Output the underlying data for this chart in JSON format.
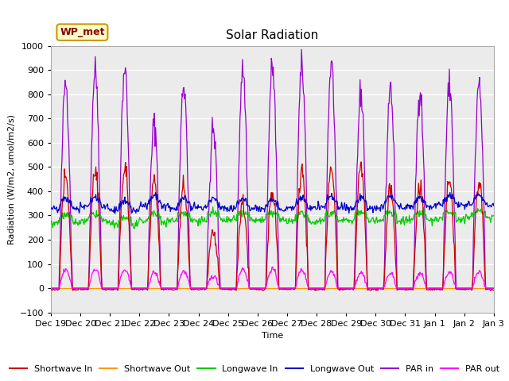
{
  "title": "Solar Radiation",
  "ylabel": "Radiation (W/m2, umol/m2/s)",
  "xlabel": "Time",
  "ylim": [
    -100,
    1000
  ],
  "annotation": "WP_met",
  "x_tick_labels": [
    "Dec 19",
    "Dec 20",
    "Dec 21",
    "Dec 22",
    "Dec 23",
    "Dec 24",
    "Dec 25",
    "Dec 26",
    "Dec 27",
    "Dec 28",
    "Dec 29",
    "Dec 30",
    "Dec 31",
    "Jan 1",
    "Jan 2",
    "Jan 3"
  ],
  "yticks": [
    -100,
    0,
    100,
    200,
    300,
    400,
    500,
    600,
    700,
    800,
    900,
    1000
  ],
  "bg_color": "#e8e8e8",
  "plot_bg_color": "#ebebeb",
  "grid_color": "#ffffff",
  "title_fontsize": 11,
  "axis_fontsize": 8,
  "legend_items": [
    {
      "label": "Shortwave In",
      "color": "#cc0000"
    },
    {
      "label": "Shortwave Out",
      "color": "#ff9900"
    },
    {
      "label": "Longwave In",
      "color": "#00cc00"
    },
    {
      "label": "Longwave Out",
      "color": "#0000cc"
    },
    {
      "label": "PAR in",
      "color": "#9900cc"
    },
    {
      "label": "PAR out",
      "color": "#ff00ff"
    }
  ],
  "n_days": 15,
  "seed": 42,
  "par_in_peaks": [
    850,
    900,
    905,
    675,
    840,
    650,
    900,
    915,
    905,
    925,
    805,
    830,
    820,
    840,
    840
  ],
  "par_out_peaks": [
    75,
    80,
    75,
    65,
    70,
    50,
    80,
    80,
    75,
    70,
    65,
    60,
    60,
    65,
    65
  ],
  "sw_in_peaks": [
    460,
    495,
    505,
    450,
    420,
    220,
    350,
    400,
    480,
    490,
    500,
    420,
    410,
    440,
    440
  ],
  "lw_in_base": [
    290,
    295,
    280,
    295,
    300,
    300,
    300,
    300,
    295,
    300,
    300,
    300,
    300,
    305,
    310
  ],
  "lw_out_base": [
    340,
    345,
    330,
    350,
    340,
    340,
    340,
    335,
    340,
    345,
    340,
    345,
    345,
    350,
    355
  ],
  "day_start": 0.28,
  "day_end": 0.72,
  "pts_per_day": 48
}
